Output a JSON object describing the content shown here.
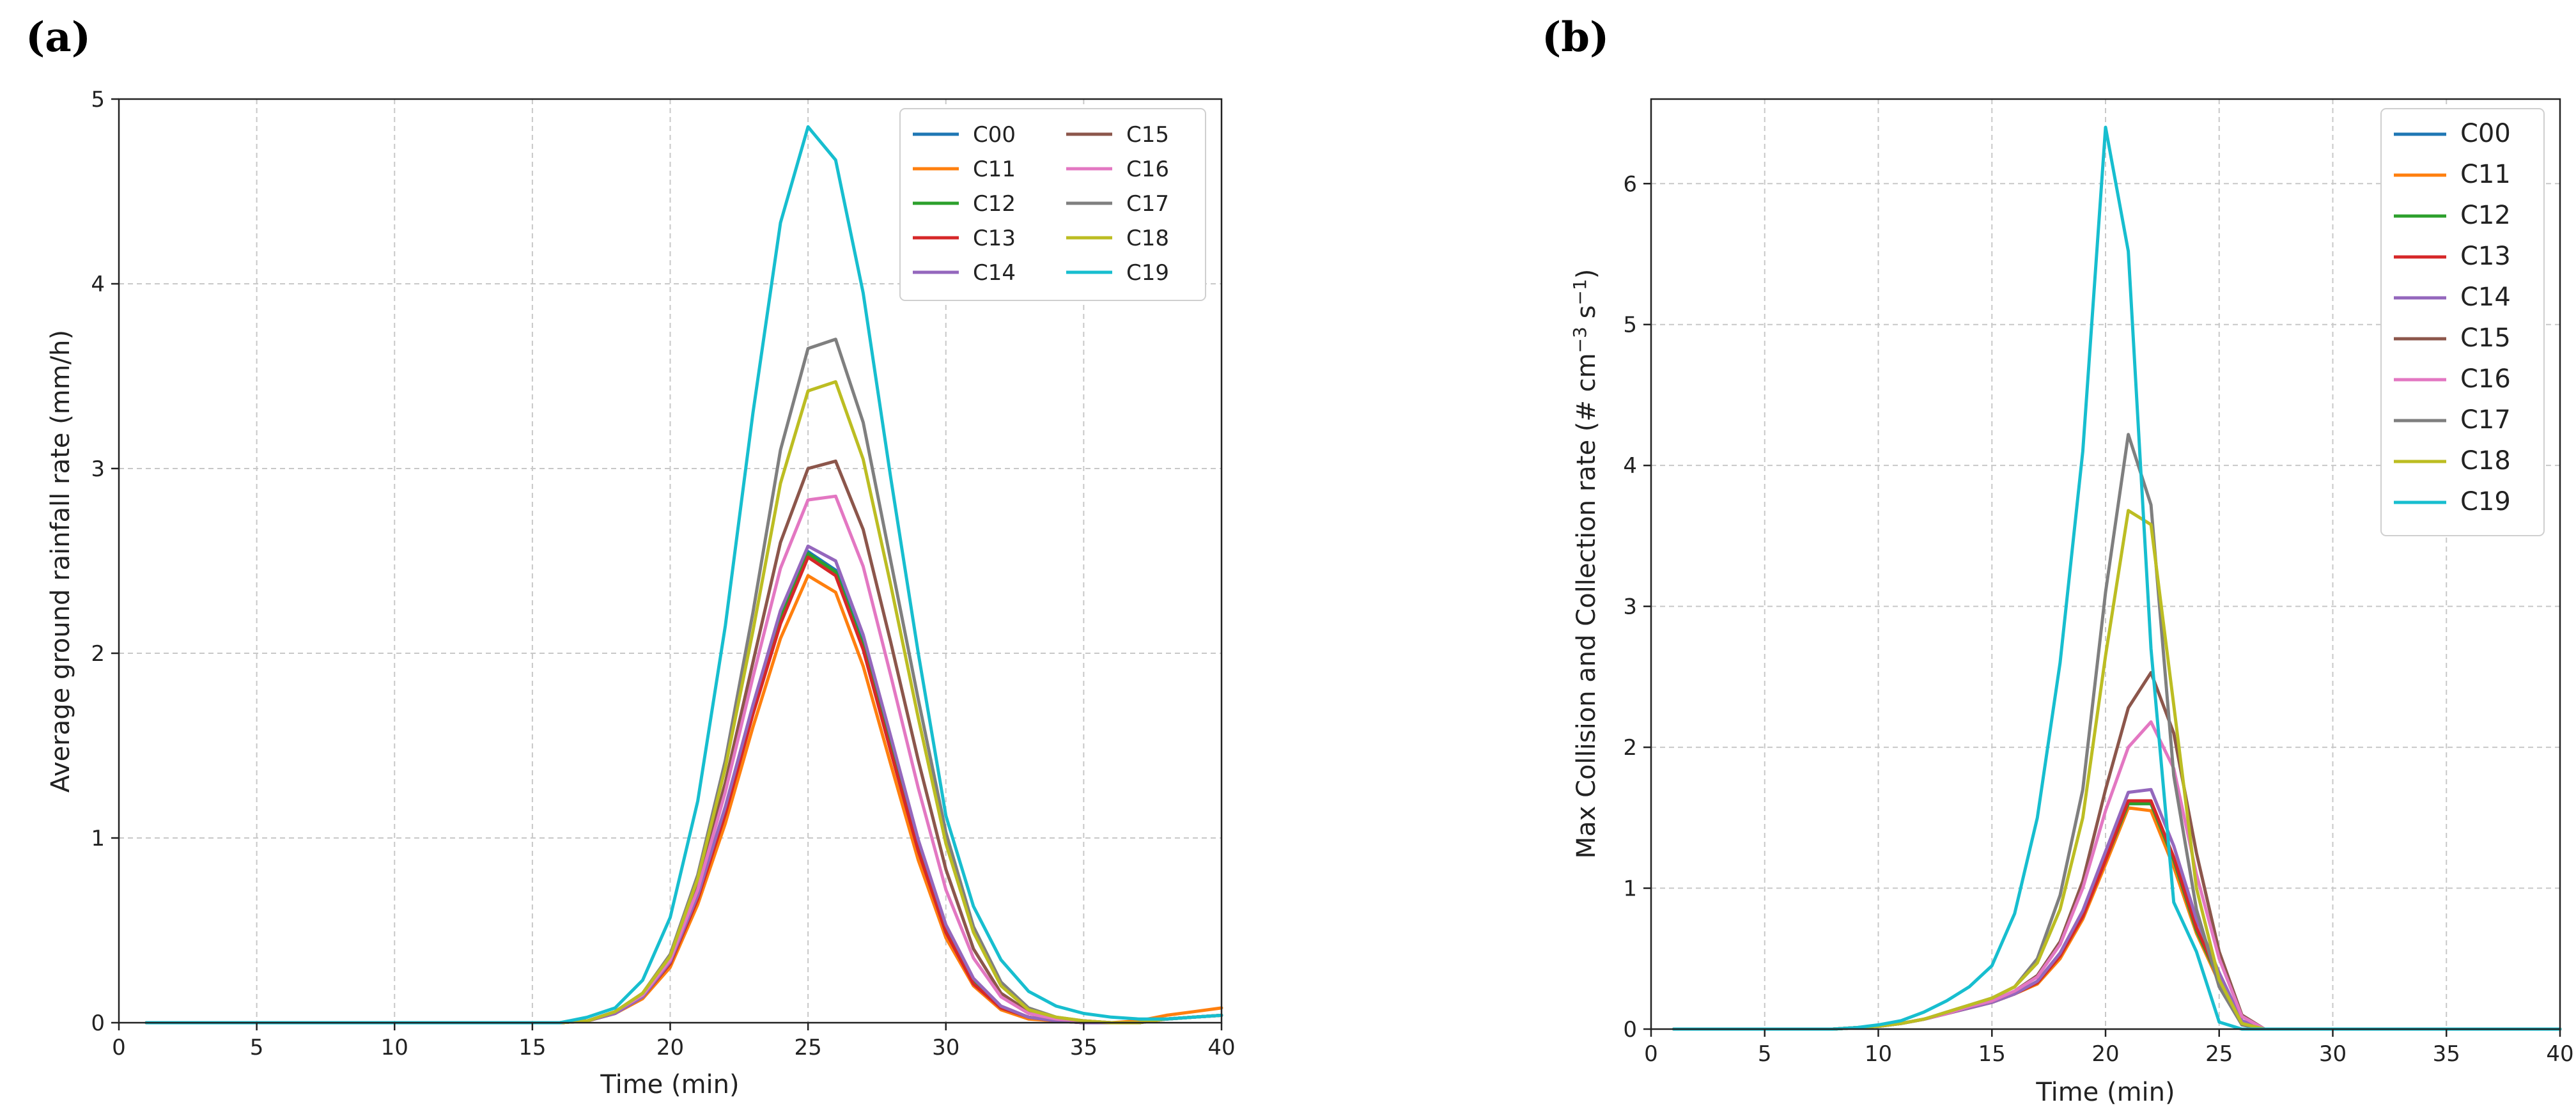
{
  "chart_data": [
    {
      "type": "line",
      "panel_label": "(a)",
      "xlabel": "Time (min)",
      "ylabel": "Average ground rainfall rate (mm/h)",
      "xlim": [
        0,
        40
      ],
      "ylim": [
        0,
        5
      ],
      "xticks": [
        0,
        5,
        10,
        15,
        20,
        25,
        30,
        35,
        40
      ],
      "yticks": [
        0,
        1,
        2,
        3,
        4,
        5
      ],
      "grid": true,
      "legend": "top-right, two columns",
      "x": [
        1,
        2,
        3,
        4,
        5,
        6,
        7,
        8,
        9,
        10,
        11,
        12,
        13,
        14,
        15,
        16,
        17,
        18,
        19,
        20,
        21,
        22,
        23,
        24,
        25,
        26,
        27,
        28,
        29,
        30,
        31,
        32,
        33,
        34,
        35,
        36,
        37,
        38,
        39,
        40
      ],
      "series": [
        {
          "name": "C00",
          "color": "#1f77b4",
          "values": [
            0,
            0,
            0,
            0,
            0,
            0,
            0,
            0,
            0,
            0,
            0,
            0,
            0,
            0,
            0,
            0,
            0.01,
            0.05,
            0.14,
            0.32,
            0.68,
            1.15,
            1.7,
            2.2,
            2.55,
            2.45,
            2.05,
            1.5,
            0.95,
            0.5,
            0.22,
            0.08,
            0.03,
            0.01,
            0,
            0,
            0,
            0.02,
            0.03,
            0.04
          ]
        },
        {
          "name": "C11",
          "color": "#ff7f0e",
          "values": [
            0,
            0,
            0,
            0,
            0,
            0,
            0,
            0,
            0,
            0,
            0,
            0,
            0,
            0,
            0,
            0,
            0.01,
            0.05,
            0.13,
            0.3,
            0.64,
            1.08,
            1.6,
            2.08,
            2.42,
            2.33,
            1.93,
            1.4,
            0.88,
            0.46,
            0.2,
            0.07,
            0.02,
            0.01,
            0,
            0,
            0.01,
            0.04,
            0.06,
            0.08
          ]
        },
        {
          "name": "C12",
          "color": "#2ca02c",
          "values": [
            0,
            0,
            0,
            0,
            0,
            0,
            0,
            0,
            0,
            0,
            0,
            0,
            0,
            0,
            0,
            0,
            0.01,
            0.05,
            0.14,
            0.32,
            0.67,
            1.14,
            1.69,
            2.19,
            2.54,
            2.44,
            2.04,
            1.49,
            0.94,
            0.49,
            0.22,
            0.08,
            0.03,
            0.01,
            0,
            0,
            0,
            0.02,
            0.03,
            0.04
          ]
        },
        {
          "name": "C13",
          "color": "#d62728",
          "values": [
            0,
            0,
            0,
            0,
            0,
            0,
            0,
            0,
            0,
            0,
            0,
            0,
            0,
            0,
            0,
            0,
            0.01,
            0.05,
            0.14,
            0.32,
            0.67,
            1.13,
            1.67,
            2.16,
            2.52,
            2.42,
            2.02,
            1.47,
            0.93,
            0.49,
            0.21,
            0.08,
            0.03,
            0.01,
            0,
            0,
            0,
            0.02,
            0.03,
            0.04
          ]
        },
        {
          "name": "C14",
          "color": "#9467bd",
          "values": [
            0,
            0,
            0,
            0,
            0,
            0,
            0,
            0,
            0,
            0,
            0,
            0,
            0,
            0,
            0,
            0,
            0.01,
            0.05,
            0.14,
            0.33,
            0.69,
            1.17,
            1.72,
            2.23,
            2.58,
            2.5,
            2.1,
            1.55,
            0.99,
            0.53,
            0.24,
            0.09,
            0.03,
            0.01,
            0,
            0,
            0,
            0.02,
            0.03,
            0.04
          ]
        },
        {
          "name": "C15",
          "color": "#8c564b",
          "values": [
            0,
            0,
            0,
            0,
            0,
            0,
            0,
            0,
            0,
            0,
            0,
            0,
            0,
            0,
            0,
            0,
            0.01,
            0.06,
            0.15,
            0.35,
            0.75,
            1.3,
            1.95,
            2.6,
            3.0,
            3.04,
            2.67,
            2.06,
            1.42,
            0.83,
            0.4,
            0.16,
            0.06,
            0.02,
            0.01,
            0,
            0,
            0.02,
            0.03,
            0.04
          ]
        },
        {
          "name": "C16",
          "color": "#e377c2",
          "values": [
            0,
            0,
            0,
            0,
            0,
            0,
            0,
            0,
            0,
            0,
            0,
            0,
            0,
            0,
            0,
            0,
            0.01,
            0.06,
            0.15,
            0.34,
            0.72,
            1.25,
            1.87,
            2.46,
            2.83,
            2.85,
            2.47,
            1.88,
            1.27,
            0.72,
            0.35,
            0.14,
            0.05,
            0.02,
            0.01,
            0,
            0,
            0.02,
            0.03,
            0.04
          ]
        },
        {
          "name": "C17",
          "color": "#7f7f7f",
          "values": [
            0,
            0,
            0,
            0,
            0,
            0,
            0,
            0,
            0,
            0,
            0,
            0,
            0,
            0,
            0,
            0,
            0.01,
            0.06,
            0.16,
            0.37,
            0.8,
            1.42,
            2.22,
            3.1,
            3.65,
            3.7,
            3.25,
            2.5,
            1.75,
            1.03,
            0.52,
            0.22,
            0.08,
            0.03,
            0.01,
            0,
            0,
            0.02,
            0.03,
            0.04
          ]
        },
        {
          "name": "C18",
          "color": "#bcbd22",
          "values": [
            0,
            0,
            0,
            0,
            0,
            0,
            0,
            0,
            0,
            0,
            0,
            0,
            0,
            0,
            0,
            0,
            0.01,
            0.06,
            0.16,
            0.36,
            0.78,
            1.38,
            2.12,
            2.92,
            3.42,
            3.47,
            3.05,
            2.37,
            1.65,
            0.97,
            0.49,
            0.2,
            0.07,
            0.03,
            0.01,
            0,
            0,
            0.02,
            0.03,
            0.04
          ]
        },
        {
          "name": "C19",
          "color": "#17becf",
          "values": [
            0,
            0,
            0,
            0,
            0,
            0,
            0,
            0,
            0,
            0,
            0,
            0,
            0,
            0,
            0,
            0,
            0.03,
            0.08,
            0.23,
            0.57,
            1.2,
            2.15,
            3.3,
            4.33,
            4.85,
            4.67,
            3.95,
            2.95,
            2.0,
            1.12,
            0.63,
            0.34,
            0.17,
            0.09,
            0.05,
            0.03,
            0.02,
            0.02,
            0.03,
            0.04
          ]
        }
      ]
    },
    {
      "type": "line",
      "panel_label": "(b)",
      "xlabel": "Time (min)",
      "ylabel_text": "Max Collision and Collection rate (# cm",
      "ylabel_sup1": "−3",
      "ylabel_mid": " s",
      "ylabel_sup2": "−1",
      "ylabel_end": ")",
      "xlim": [
        0,
        40
      ],
      "ylim": [
        0,
        6.6
      ],
      "xticks": [
        0,
        5,
        10,
        15,
        20,
        25,
        30,
        35,
        40
      ],
      "yticks": [
        0,
        1,
        2,
        3,
        4,
        5,
        6
      ],
      "grid": true,
      "legend": "top-right, one column",
      "x": [
        1,
        2,
        3,
        4,
        5,
        6,
        7,
        8,
        9,
        10,
        11,
        12,
        13,
        14,
        15,
        16,
        17,
        18,
        19,
        20,
        21,
        22,
        23,
        24,
        25,
        26,
        27,
        28,
        29,
        30,
        31,
        32,
        33,
        34,
        35,
        36,
        37,
        38,
        39,
        40
      ],
      "series": [
        {
          "name": "C00",
          "color": "#1f77b4",
          "values": [
            0,
            0,
            0,
            0,
            0,
            0,
            0,
            0,
            0.01,
            0.02,
            0.04,
            0.07,
            0.11,
            0.15,
            0.19,
            0.25,
            0.33,
            0.52,
            0.8,
            1.2,
            1.6,
            1.6,
            1.2,
            0.7,
            0.35,
            0.05,
            0,
            0,
            0,
            0,
            0,
            0,
            0,
            0,
            0,
            0,
            0,
            0,
            0,
            0
          ]
        },
        {
          "name": "C11",
          "color": "#ff7f0e",
          "values": [
            0,
            0,
            0,
            0,
            0,
            0,
            0,
            0,
            0.01,
            0.02,
            0.04,
            0.07,
            0.11,
            0.15,
            0.19,
            0.25,
            0.32,
            0.5,
            0.78,
            1.17,
            1.57,
            1.55,
            1.15,
            0.68,
            0.33,
            0.05,
            0,
            0,
            0,
            0,
            0,
            0,
            0,
            0,
            0,
            0,
            0,
            0,
            0,
            0
          ]
        },
        {
          "name": "C12",
          "color": "#2ca02c",
          "values": [
            0,
            0,
            0,
            0,
            0,
            0,
            0,
            0,
            0.01,
            0.02,
            0.04,
            0.07,
            0.11,
            0.15,
            0.19,
            0.25,
            0.33,
            0.52,
            0.8,
            1.2,
            1.6,
            1.6,
            1.2,
            0.7,
            0.35,
            0.05,
            0,
            0,
            0,
            0,
            0,
            0,
            0,
            0,
            0,
            0,
            0,
            0,
            0,
            0
          ]
        },
        {
          "name": "C13",
          "color": "#d62728",
          "values": [
            0,
            0,
            0,
            0,
            0,
            0,
            0,
            0,
            0.01,
            0.02,
            0.04,
            0.07,
            0.11,
            0.15,
            0.19,
            0.25,
            0.33,
            0.52,
            0.8,
            1.2,
            1.62,
            1.62,
            1.22,
            0.72,
            0.36,
            0.05,
            0,
            0,
            0,
            0,
            0,
            0,
            0,
            0,
            0,
            0,
            0,
            0,
            0,
            0
          ]
        },
        {
          "name": "C14",
          "color": "#9467bd",
          "values": [
            0,
            0,
            0,
            0,
            0,
            0,
            0,
            0,
            0.01,
            0.02,
            0.04,
            0.07,
            0.11,
            0.15,
            0.19,
            0.25,
            0.34,
            0.54,
            0.84,
            1.26,
            1.68,
            1.7,
            1.3,
            0.78,
            0.4,
            0.06,
            0,
            0,
            0,
            0,
            0,
            0,
            0,
            0,
            0,
            0,
            0,
            0,
            0,
            0
          ]
        },
        {
          "name": "C15",
          "color": "#8c564b",
          "values": [
            0,
            0,
            0,
            0,
            0,
            0,
            0,
            0,
            0.01,
            0.02,
            0.04,
            0.07,
            0.11,
            0.16,
            0.2,
            0.27,
            0.38,
            0.62,
            1.05,
            1.7,
            2.28,
            2.53,
            2.1,
            1.25,
            0.55,
            0.1,
            0,
            0,
            0,
            0,
            0,
            0,
            0,
            0,
            0,
            0,
            0,
            0,
            0,
            0
          ]
        },
        {
          "name": "C16",
          "color": "#e377c2",
          "values": [
            0,
            0,
            0,
            0,
            0,
            0,
            0,
            0,
            0.01,
            0.02,
            0.04,
            0.07,
            0.11,
            0.16,
            0.2,
            0.27,
            0.37,
            0.6,
            1.0,
            1.55,
            2.0,
            2.18,
            1.85,
            1.1,
            0.5,
            0.09,
            0,
            0,
            0,
            0,
            0,
            0,
            0,
            0,
            0,
            0,
            0,
            0,
            0,
            0
          ]
        },
        {
          "name": "C17",
          "color": "#7f7f7f",
          "values": [
            0,
            0,
            0,
            0,
            0,
            0,
            0,
            0,
            0.01,
            0.02,
            0.04,
            0.07,
            0.12,
            0.17,
            0.22,
            0.3,
            0.5,
            0.95,
            1.7,
            3.1,
            4.22,
            3.72,
            1.8,
            0.85,
            0.3,
            0.03,
            0,
            0,
            0,
            0,
            0,
            0,
            0,
            0,
            0,
            0,
            0,
            0,
            0,
            0
          ]
        },
        {
          "name": "C18",
          "color": "#bcbd22",
          "values": [
            0,
            0,
            0,
            0,
            0,
            0,
            0,
            0,
            0.01,
            0.02,
            0.04,
            0.07,
            0.12,
            0.17,
            0.22,
            0.3,
            0.47,
            0.85,
            1.5,
            2.65,
            3.68,
            3.58,
            2.3,
            1.0,
            0.35,
            0.04,
            0,
            0,
            0,
            0,
            0,
            0,
            0,
            0,
            0,
            0,
            0,
            0,
            0,
            0
          ]
        },
        {
          "name": "C19",
          "color": "#17becf",
          "values": [
            0,
            0,
            0,
            0,
            0,
            0,
            0,
            0,
            0.01,
            0.03,
            0.06,
            0.12,
            0.2,
            0.3,
            0.45,
            0.82,
            1.5,
            2.6,
            4.1,
            6.4,
            5.52,
            2.7,
            0.9,
            0.55,
            0.05,
            0,
            0,
            0,
            0,
            0,
            0,
            0,
            0,
            0,
            0,
            0,
            0,
            0,
            0,
            0
          ]
        }
      ]
    }
  ]
}
